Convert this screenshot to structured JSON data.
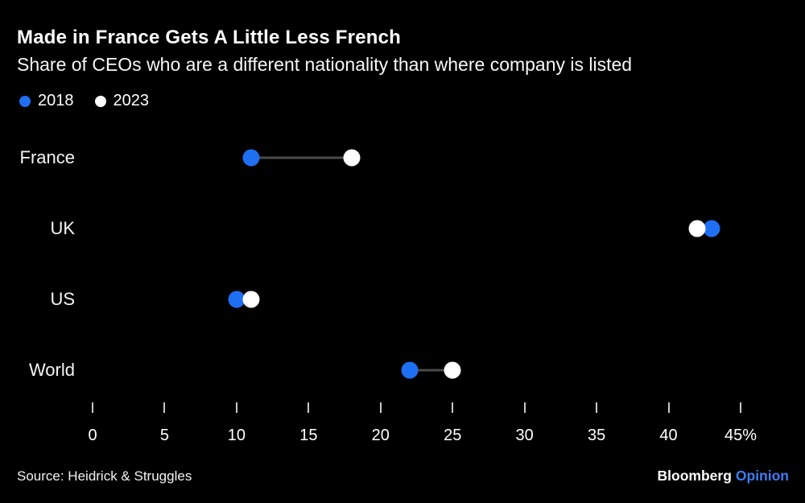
{
  "header": {
    "title": "Made in France Gets A Little Less French",
    "subtitle": "Share of CEOs who are a different nationality than where company is listed"
  },
  "legend": [
    {
      "label": "2018",
      "color": "#1f6ff2"
    },
    {
      "label": "2023",
      "color": "#ffffff"
    }
  ],
  "chart_data": {
    "type": "scatter",
    "subtype": "dumbbell-dot-plot",
    "categories": [
      "France",
      "UK",
      "US",
      "World"
    ],
    "series": [
      {
        "name": "2018",
        "color": "#1f6ff2",
        "values": [
          11,
          43,
          10,
          22
        ]
      },
      {
        "name": "2023",
        "color": "#ffffff",
        "values": [
          18,
          42,
          11,
          25
        ]
      }
    ],
    "xlim": [
      0,
      45
    ],
    "x_ticks": [
      0,
      5,
      10,
      15,
      20,
      25,
      30,
      35,
      40,
      45
    ],
    "x_tick_labels": [
      "0",
      "5",
      "10",
      "15",
      "20",
      "25",
      "30",
      "35",
      "40",
      "45%"
    ],
    "connector_color": "#4a4a4a",
    "grid": false,
    "legend_position": "top-left",
    "orientation": "horizontal"
  },
  "footer": {
    "source": "Source: Heidrick & Struggles",
    "brand": "Bloomberg",
    "brand_suffix": "Opinion",
    "brand_suffix_color": "#3f7cf3"
  },
  "colors": {
    "background": "#000000",
    "text": "#ffffff",
    "accent_blue": "#1f6ff2",
    "axis_tick": "#c9c9c9"
  }
}
